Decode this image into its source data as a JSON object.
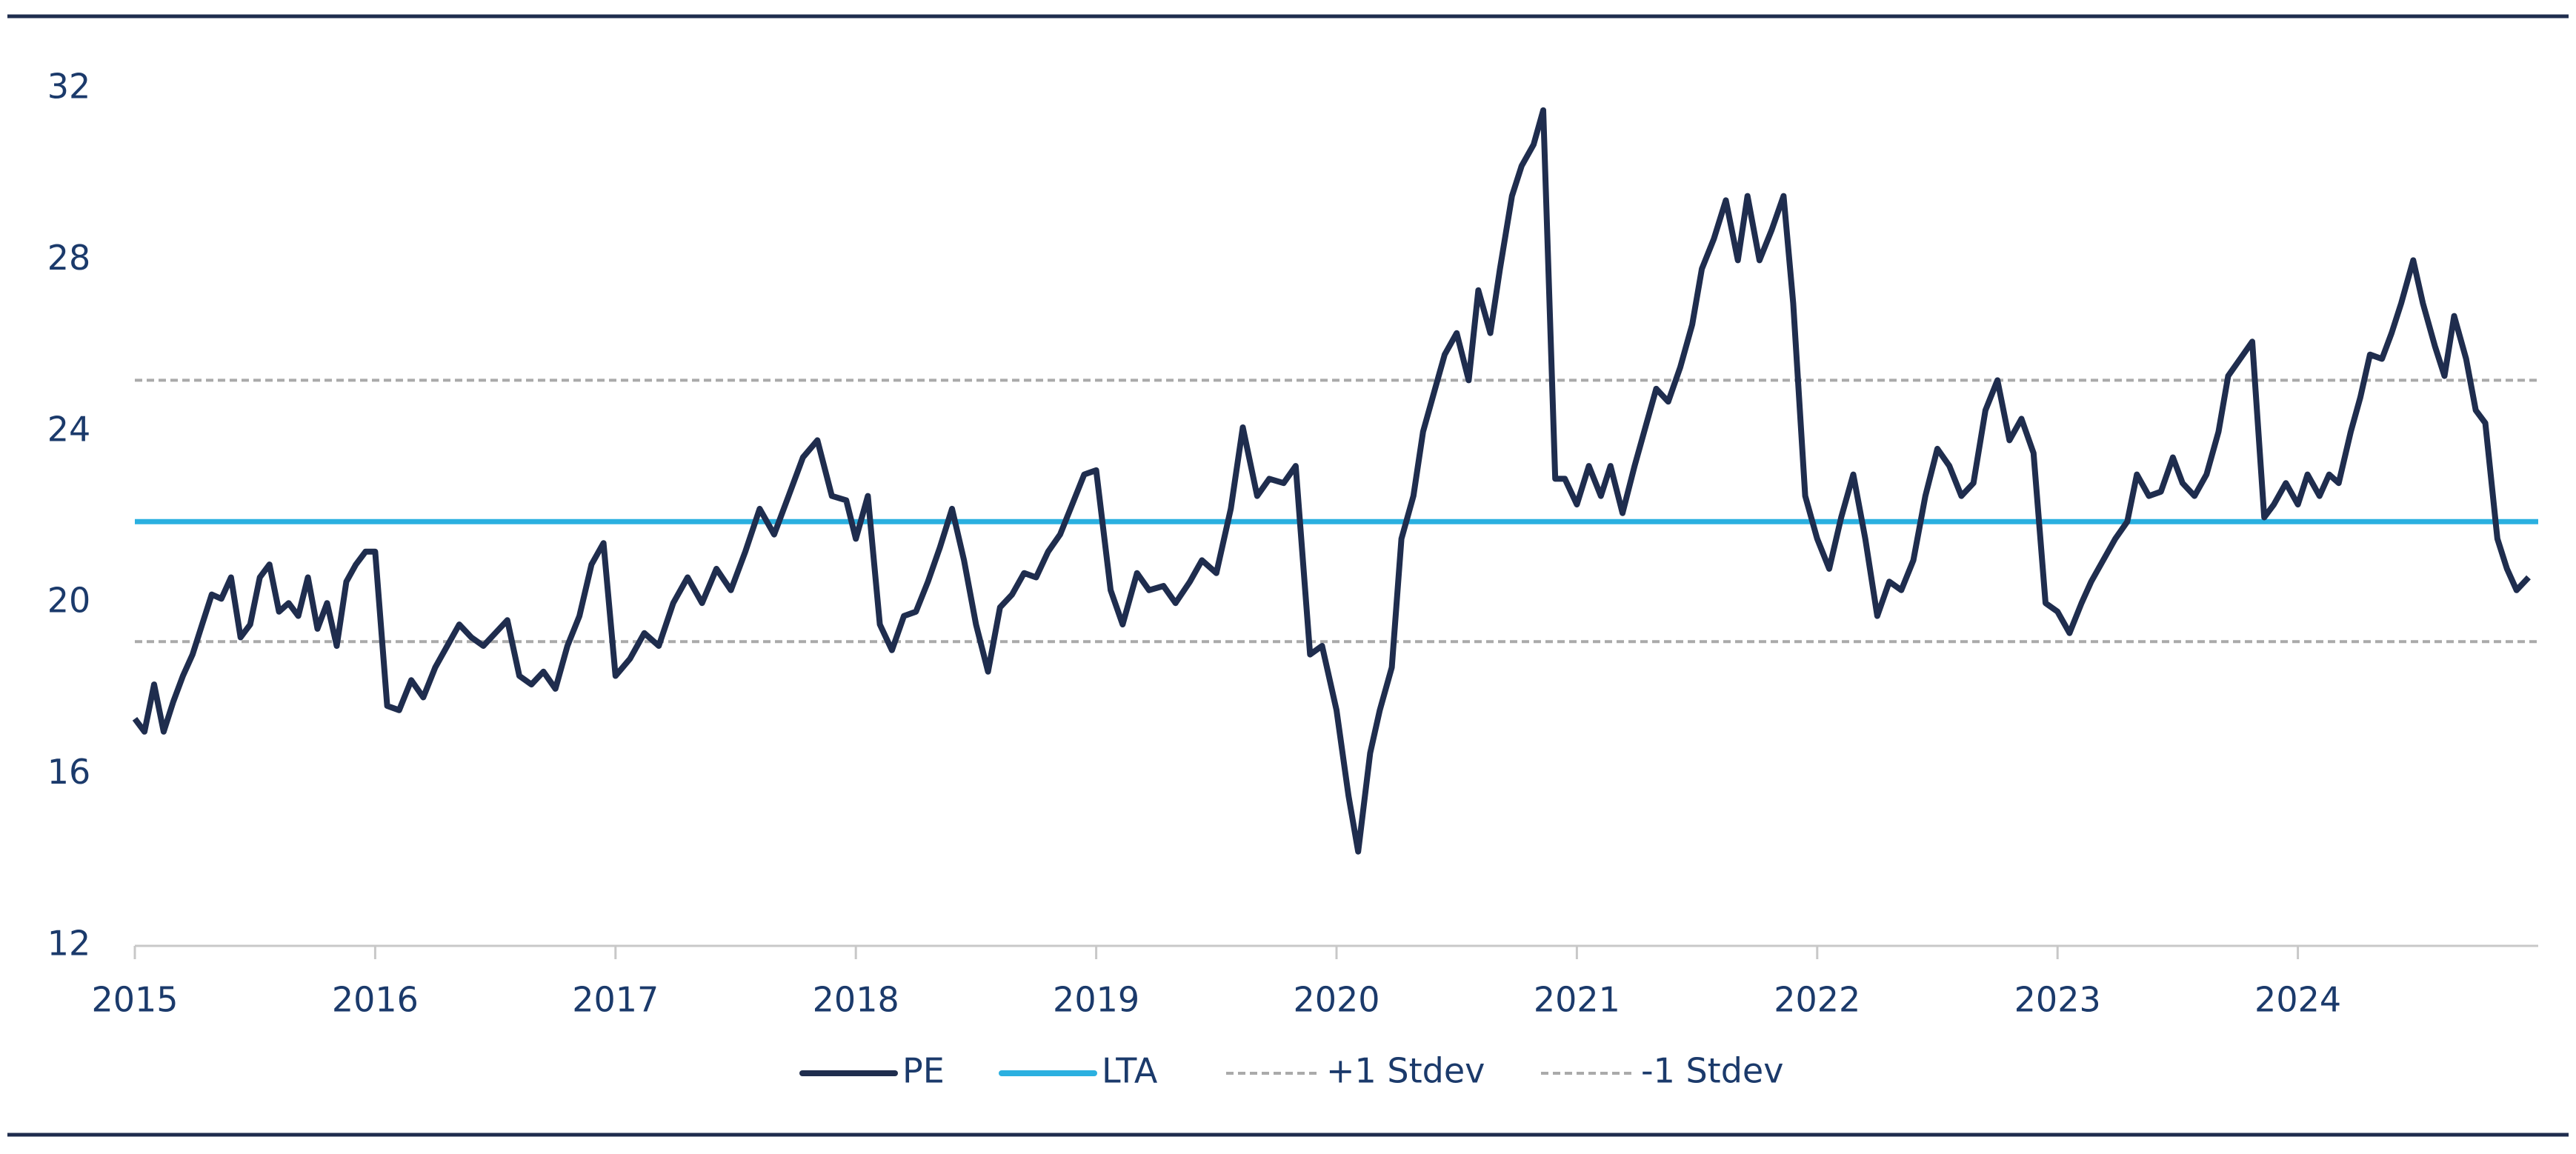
{
  "chart_data": {
    "type": "line",
    "x": [
      2015,
      2015.04,
      2015.08,
      2015.12,
      2015.16,
      2015.2,
      2015.24,
      2015.28,
      2015.32,
      2015.36,
      2015.4,
      2015.44,
      2015.48,
      2015.52,
      2015.56,
      2015.6,
      2015.64,
      2015.68,
      2015.72,
      2015.76,
      2015.8,
      2015.84,
      2015.88,
      2015.92,
      2015.96,
      2016,
      2016.05,
      2016.1,
      2016.15,
      2016.2,
      2016.25,
      2016.3,
      2016.35,
      2016.4,
      2016.45,
      2016.5,
      2016.55,
      2016.6,
      2016.65,
      2016.7,
      2016.75,
      2016.8,
      2016.85,
      2016.9,
      2016.95,
      2017,
      2017.06,
      2017.12,
      2017.18,
      2017.24,
      2017.3,
      2017.36,
      2017.42,
      2017.48,
      2017.54,
      2017.6,
      2017.66,
      2017.72,
      2017.78,
      2017.84,
      2017.9,
      2017.96,
      2018,
      2018.05,
      2018.1,
      2018.15,
      2018.2,
      2018.25,
      2018.3,
      2018.35,
      2018.4,
      2018.45,
      2018.5,
      2018.55,
      2018.6,
      2018.65,
      2018.7,
      2018.75,
      2018.8,
      2018.85,
      2018.9,
      2018.95,
      2019,
      2019.06,
      2019.11,
      2019.17,
      2019.22,
      2019.28,
      2019.33,
      2019.39,
      2019.44,
      2019.5,
      2019.56,
      2019.61,
      2019.67,
      2019.72,
      2019.78,
      2019.83,
      2019.89,
      2019.94,
      2020,
      2020.05,
      2020.09,
      2020.14,
      2020.18,
      2020.23,
      2020.27,
      2020.32,
      2020.36,
      2020.41,
      2020.45,
      2020.5,
      2020.55,
      2020.59,
      2020.64,
      2020.68,
      2020.73,
      2020.77,
      2020.82,
      2020.86,
      2020.91,
      2020.95,
      2021,
      2021.05,
      2021.1,
      2021.14,
      2021.19,
      2021.24,
      2021.29,
      2021.33,
      2021.38,
      2021.43,
      2021.48,
      2021.52,
      2021.57,
      2021.62,
      2021.67,
      2021.71,
      2021.76,
      2021.81,
      2021.86,
      2021.9,
      2021.95,
      2022,
      2022.05,
      2022.1,
      2022.15,
      2022.2,
      2022.25,
      2022.3,
      2022.35,
      2022.4,
      2022.45,
      2022.5,
      2022.55,
      2022.6,
      2022.65,
      2022.7,
      2022.75,
      2022.8,
      2022.85,
      2022.9,
      2022.95,
      2023,
      2023.05,
      2023.1,
      2023.14,
      2023.19,
      2023.24,
      2023.29,
      2023.33,
      2023.38,
      2023.43,
      2023.48,
      2023.52,
      2023.57,
      2023.62,
      2023.67,
      2023.71,
      2023.76,
      2023.81,
      2023.86,
      2023.9,
      2023.95,
      2024,
      2024.04,
      2024.09,
      2024.13,
      2024.17,
      2024.22,
      2024.26,
      2024.3,
      2024.35,
      2024.39,
      2024.43,
      2024.48,
      2024.52,
      2024.57,
      2024.61,
      2024.65,
      2024.7,
      2024.74,
      2024.78,
      2024.83,
      2024.87,
      2024.91,
      2024.96
    ],
    "series": [
      {
        "name": "PE",
        "color": "#1f2d4e",
        "values": [
          17.3,
          17.0,
          18.1,
          17.0,
          17.7,
          18.3,
          18.8,
          19.5,
          20.2,
          20.1,
          20.6,
          19.2,
          19.5,
          20.6,
          20.9,
          19.8,
          20.0,
          19.7,
          20.6,
          19.4,
          20.0,
          19.0,
          20.5,
          20.9,
          21.2,
          21.2,
          17.6,
          17.5,
          18.2,
          17.8,
          18.5,
          19.0,
          19.5,
          19.2,
          19.0,
          19.3,
          19.6,
          18.3,
          18.1,
          18.4,
          18.0,
          19.0,
          19.7,
          20.9,
          21.4,
          18.3,
          18.7,
          19.3,
          19.0,
          20.0,
          20.6,
          20.0,
          20.8,
          20.3,
          21.2,
          22.2,
          21.6,
          22.5,
          23.4,
          23.8,
          22.5,
          22.4,
          21.5,
          22.5,
          19.5,
          18.9,
          19.7,
          19.8,
          20.5,
          21.3,
          22.2,
          21.0,
          19.5,
          18.4,
          19.9,
          20.2,
          20.7,
          20.6,
          21.2,
          21.6,
          22.3,
          23.0,
          23.1,
          20.3,
          19.5,
          20.7,
          20.3,
          20.4,
          20.0,
          20.5,
          21.0,
          20.7,
          22.2,
          24.1,
          22.5,
          22.9,
          22.8,
          23.2,
          18.8,
          19.0,
          17.5,
          15.5,
          14.2,
          16.5,
          17.5,
          18.5,
          21.5,
          22.5,
          24.0,
          25.0,
          25.8,
          26.3,
          25.2,
          27.3,
          26.3,
          27.8,
          29.5,
          30.2,
          30.7,
          31.5,
          22.9,
          22.9,
          22.3,
          23.2,
          22.5,
          23.2,
          22.1,
          23.2,
          24.2,
          25.0,
          24.7,
          25.5,
          26.5,
          27.8,
          28.5,
          29.4,
          28.0,
          29.5,
          28.0,
          28.7,
          29.5,
          27.0,
          22.5,
          21.5,
          20.8,
          22.0,
          23.0,
          21.5,
          19.7,
          20.5,
          20.3,
          21.0,
          22.5,
          23.6,
          23.2,
          22.5,
          22.8,
          24.5,
          25.2,
          23.8,
          24.3,
          23.5,
          20.0,
          19.8,
          19.3,
          20.0,
          20.5,
          21.0,
          21.5,
          21.9,
          23.0,
          22.5,
          22.6,
          23.4,
          22.8,
          22.5,
          23.0,
          24.0,
          25.3,
          25.7,
          26.1,
          22.0,
          22.3,
          22.8,
          22.3,
          23.0,
          22.5,
          23.0,
          22.8,
          24.0,
          24.8,
          25.8,
          25.7,
          26.3,
          27.0,
          28.0,
          27.0,
          26.0,
          25.3,
          26.7,
          25.7,
          24.5,
          24.2,
          21.5,
          20.8,
          20.3,
          20.6
        ]
      }
    ],
    "reference_lines": [
      {
        "name": "LTA",
        "value": 21.9,
        "color": "#2bb0e0",
        "dashed": false
      },
      {
        "name": "+1 Stdev",
        "value": 25.2,
        "color": "#aaaaaa",
        "dashed": true
      },
      {
        "name": "-1 Stdev",
        "value": 19.1,
        "color": "#aaaaaa",
        "dashed": true
      }
    ],
    "xlim": [
      2015,
      2025
    ],
    "xticks": [
      2015,
      2016,
      2017,
      2018,
      2019,
      2020,
      2021,
      2022,
      2023,
      2024
    ],
    "ylim": [
      12,
      32
    ],
    "yticks": [
      12,
      16,
      20,
      24,
      28,
      32
    ],
    "legend": "bottom"
  }
}
